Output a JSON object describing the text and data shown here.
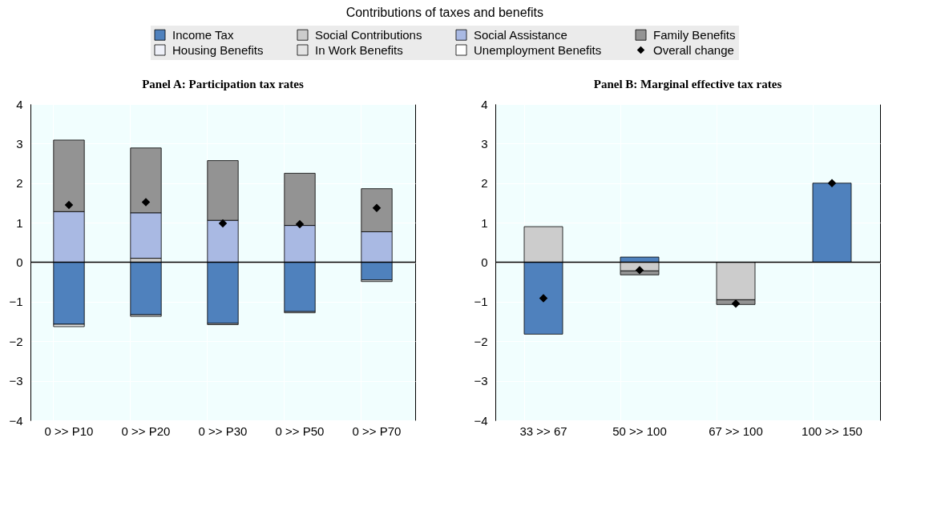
{
  "chart_data": [
    {
      "type": "bar",
      "title": "Contributions of taxes and benefits",
      "subtitle": "Panel A: Participation tax rates",
      "stacked": true,
      "legend": "top",
      "grid": true,
      "categories": [
        "0 >> P10",
        "0 >> P20",
        "0 >> P30",
        "0 >> P50",
        "0 >> P70"
      ],
      "ylim": [
        -4,
        4
      ],
      "yticks": [
        -4,
        -3,
        -2,
        -1,
        0,
        1,
        2,
        3,
        4
      ],
      "ref_lines": [
        {
          "axis": "y",
          "value": 0,
          "color": "#000000"
        }
      ],
      "series": [
        {
          "name": "Income Tax",
          "color": "#4f81bd",
          "values": [
            -1.57,
            -1.33,
            -1.55,
            -1.25,
            -0.45
          ]
        },
        {
          "name": "Social Contributions",
          "color": "#cccccc",
          "values": [
            null,
            0.1,
            null,
            null,
            null
          ]
        },
        {
          "name": "Social Assistance",
          "color": "#a9b9e3",
          "values": [
            1.28,
            1.15,
            1.06,
            0.93,
            0.77
          ]
        },
        {
          "name": "Family Benefits",
          "color": "#939393",
          "values": [
            1.81,
            1.64,
            1.51,
            1.32,
            1.09
          ]
        },
        {
          "name": "Housing Benefits",
          "color": "#eef0f8",
          "values": [
            null,
            null,
            null,
            null,
            null
          ]
        },
        {
          "name": "In Work Benefits",
          "color": "#e4e4e4",
          "values": [
            -0.06,
            -0.04,
            -0.03,
            -0.03,
            -0.04
          ]
        },
        {
          "name": "Unemployment Benefits",
          "color": "#ffffff",
          "values": [
            null,
            null,
            null,
            null,
            null
          ]
        },
        {
          "name": "Overall change",
          "type": "scatter",
          "marker": "diamond",
          "color": "#000000",
          "x": [
            "0 >> P10",
            "0 >> P20",
            "0 >> P30",
            "0 >> P50",
            "0 >> P70"
          ],
          "values": [
            1.45,
            1.52,
            0.98,
            0.96,
            1.37
          ]
        }
      ]
    },
    {
      "type": "bar",
      "title": "Panel B: Marginal effective tax rates",
      "stacked": true,
      "grid": true,
      "categories": [
        "33 >> 67",
        "50 >> 100",
        "67 >> 100",
        "100 >> 150"
      ],
      "ylim": [
        -4,
        4
      ],
      "yticks": [
        -4,
        -3,
        -2,
        -1,
        0,
        1,
        2,
        3,
        4
      ],
      "ref_lines": [
        {
          "axis": "y",
          "value": 0,
          "color": "#000000"
        }
      ],
      "series": [
        {
          "name": "Income Tax",
          "color": "#4f81bd",
          "values": [
            -1.82,
            0.13,
            null,
            2.0
          ]
        },
        {
          "name": "Social Contributions",
          "color": "#cccccc",
          "values": [
            0.9,
            -0.22,
            -0.95,
            null
          ]
        },
        {
          "name": "Family Benefits",
          "color": "#939393",
          "values": [
            null,
            -0.1,
            -0.12,
            null
          ]
        },
        {
          "name": "Overall change",
          "type": "scatter",
          "marker": "diamond",
          "color": "#000000",
          "x": [
            "33 >> 67",
            "50 >> 100",
            "67 >> 100",
            "100 >> 150"
          ],
          "values": [
            -0.91,
            -0.2,
            -1.05,
            2.0
          ]
        }
      ]
    }
  ]
}
